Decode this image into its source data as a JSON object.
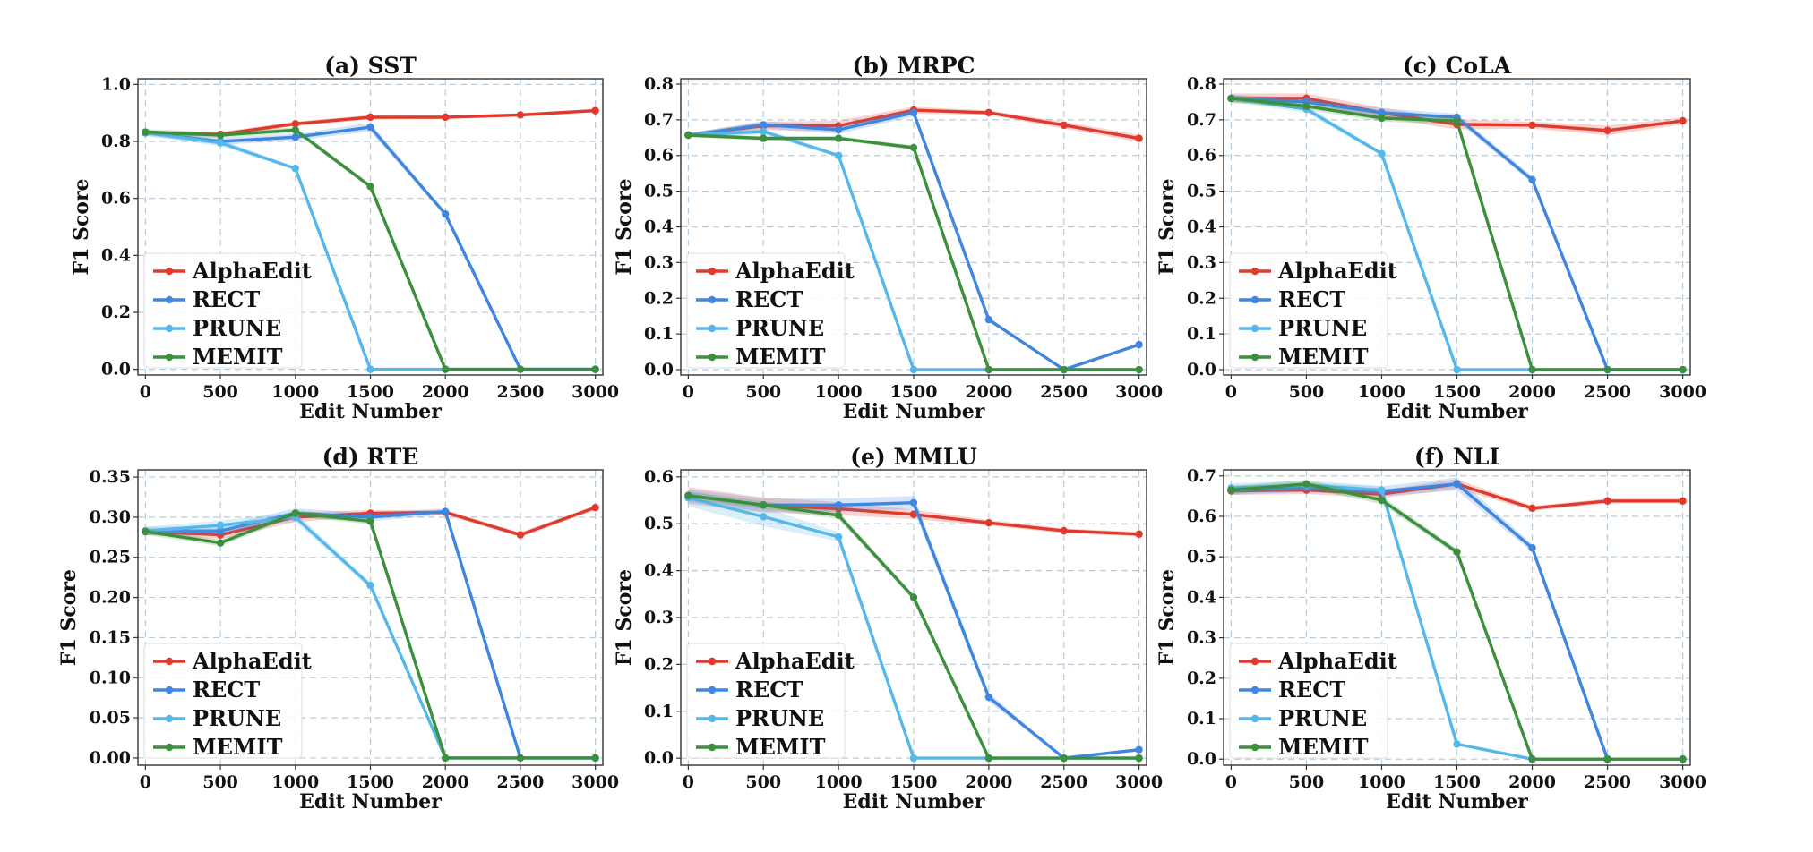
{
  "chart_data": [
    {
      "type": "line",
      "title": "(a) SST",
      "xlabel": "Edit Number",
      "ylabel": "F1 Score",
      "x": [
        0,
        500,
        1000,
        1500,
        2000,
        2500,
        3000
      ],
      "ylim": [
        -0.02,
        1.02
      ],
      "yticks": [
        0.0,
        0.2,
        0.4,
        0.6,
        0.8,
        1.0
      ],
      "ytick_labels": [
        "0.0",
        "0.2",
        "0.4",
        "0.6",
        "0.8",
        "1.0"
      ],
      "legend_position": "lower-left",
      "grid": true,
      "series": [
        {
          "name": "AlphaEdit",
          "color": "#e03a2e",
          "values": [
            0.83,
            0.825,
            0.862,
            0.885,
            0.885,
            0.893,
            0.908
          ],
          "band": [
            0.008,
            0.008,
            0.008,
            0.008,
            0.006,
            0.006,
            0.006
          ]
        },
        {
          "name": "RECT",
          "color": "#3f86e0",
          "values": [
            0.83,
            0.8,
            0.815,
            0.85,
            0.545,
            0.0,
            0.0
          ],
          "band": [
            0.01,
            0.012,
            0.012,
            0.015,
            0.008,
            0.0,
            0.0
          ]
        },
        {
          "name": "PRUNE",
          "color": "#55b7ea",
          "values": [
            0.83,
            0.795,
            0.705,
            0.0,
            0.0,
            0.0,
            0.0
          ],
          "band": [
            0.01,
            0.012,
            0.005,
            0.0,
            0.0,
            0.0,
            0.0
          ]
        },
        {
          "name": "MEMIT",
          "color": "#3c8f3c",
          "values": [
            0.833,
            0.822,
            0.84,
            0.642,
            0.0,
            0.0,
            0.0
          ],
          "band": [
            0.01,
            0.01,
            0.01,
            0.008,
            0.0,
            0.0,
            0.0
          ]
        }
      ]
    },
    {
      "type": "line",
      "title": "(b) MRPC",
      "xlabel": "Edit Number",
      "ylabel": "F1 Score",
      "x": [
        0,
        500,
        1000,
        1500,
        2000,
        2500,
        3000
      ],
      "ylim": [
        -0.015,
        0.815
      ],
      "yticks": [
        0.0,
        0.1,
        0.2,
        0.3,
        0.4,
        0.5,
        0.6,
        0.7,
        0.8
      ],
      "ytick_labels": [
        "0.0",
        "0.1",
        "0.2",
        "0.3",
        "0.4",
        "0.5",
        "0.6",
        "0.7",
        "0.8"
      ],
      "legend_position": "lower-left",
      "grid": true,
      "series": [
        {
          "name": "AlphaEdit",
          "color": "#e03a2e",
          "values": [
            0.657,
            0.683,
            0.683,
            0.727,
            0.72,
            0.685,
            0.648
          ],
          "band": [
            0.006,
            0.012,
            0.015,
            0.01,
            0.006,
            0.01,
            0.01
          ]
        },
        {
          "name": "RECT",
          "color": "#3f86e0",
          "values": [
            0.657,
            0.686,
            0.672,
            0.72,
            0.14,
            0.0,
            0.07
          ],
          "band": [
            0.006,
            0.01,
            0.012,
            0.01,
            0.006,
            0.0,
            0.003
          ]
        },
        {
          "name": "PRUNE",
          "color": "#55b7ea",
          "values": [
            0.657,
            0.667,
            0.6,
            0.0,
            0.0,
            0.0,
            0.0
          ],
          "band": [
            0.006,
            0.008,
            0.005,
            0.0,
            0.0,
            0.0,
            0.0
          ]
        },
        {
          "name": "MEMIT",
          "color": "#3c8f3c",
          "values": [
            0.657,
            0.648,
            0.648,
            0.622,
            0.0,
            0.0,
            0.0
          ],
          "band": [
            0.006,
            0.006,
            0.006,
            0.006,
            0.0,
            0.0,
            0.0
          ]
        }
      ]
    },
    {
      "type": "line",
      "title": "(c) CoLA",
      "xlabel": "Edit Number",
      "ylabel": "F1 Score",
      "x": [
        0,
        500,
        1000,
        1500,
        2000,
        2500,
        3000
      ],
      "ylim": [
        -0.015,
        0.815
      ],
      "yticks": [
        0.0,
        0.1,
        0.2,
        0.3,
        0.4,
        0.5,
        0.6,
        0.7,
        0.8
      ],
      "ytick_labels": [
        "0.0",
        "0.1",
        "0.2",
        "0.3",
        "0.4",
        "0.5",
        "0.6",
        "0.7",
        "0.8"
      ],
      "legend_position": "lower-left",
      "grid": true,
      "series": [
        {
          "name": "AlphaEdit",
          "color": "#e03a2e",
          "values": [
            0.76,
            0.76,
            0.72,
            0.687,
            0.685,
            0.67,
            0.697
          ],
          "band": [
            0.014,
            0.014,
            0.014,
            0.014,
            0.01,
            0.014,
            0.01
          ]
        },
        {
          "name": "RECT",
          "color": "#3f86e0",
          "values": [
            0.76,
            0.75,
            0.72,
            0.707,
            0.532,
            0.0,
            0.0
          ],
          "band": [
            0.01,
            0.012,
            0.012,
            0.01,
            0.01,
            0.0,
            0.0
          ]
        },
        {
          "name": "PRUNE",
          "color": "#55b7ea",
          "values": [
            0.76,
            0.73,
            0.605,
            0.0,
            0.0,
            0.0,
            0.0
          ],
          "band": [
            0.01,
            0.01,
            0.006,
            0.0,
            0.0,
            0.0,
            0.0
          ]
        },
        {
          "name": "MEMIT",
          "color": "#3c8f3c",
          "values": [
            0.76,
            0.738,
            0.705,
            0.697,
            0.0,
            0.0,
            0.0
          ],
          "band": [
            0.01,
            0.01,
            0.01,
            0.01,
            0.0,
            0.0,
            0.0
          ]
        }
      ]
    },
    {
      "type": "line",
      "title": "(d) RTE",
      "xlabel": "Edit Number",
      "ylabel": "F1 Score",
      "x": [
        0,
        500,
        1000,
        1500,
        2000,
        2500,
        3000
      ],
      "ylim": [
        -0.009,
        0.359
      ],
      "yticks": [
        0.0,
        0.05,
        0.1,
        0.15,
        0.2,
        0.25,
        0.3,
        0.35
      ],
      "ytick_labels": [
        "0.00",
        "0.05",
        "0.10",
        "0.15",
        "0.20",
        "0.25",
        "0.30",
        "0.35"
      ],
      "legend_position": "lower-left",
      "grid": true,
      "series": [
        {
          "name": "AlphaEdit",
          "color": "#e03a2e",
          "values": [
            0.282,
            0.278,
            0.3,
            0.305,
            0.306,
            0.278,
            0.312
          ],
          "band": [
            0.004,
            0.005,
            0.006,
            0.004,
            0.003,
            0.003,
            0.003
          ]
        },
        {
          "name": "RECT",
          "color": "#3f86e0",
          "values": [
            0.283,
            0.283,
            0.305,
            0.3,
            0.307,
            0.0,
            0.0
          ],
          "band": [
            0.005,
            0.006,
            0.006,
            0.005,
            0.004,
            0.0,
            0.0
          ]
        },
        {
          "name": "PRUNE",
          "color": "#55b7ea",
          "values": [
            0.283,
            0.29,
            0.3,
            0.215,
            0.0,
            0.0,
            0.0
          ],
          "band": [
            0.005,
            0.006,
            0.006,
            0.004,
            0.0,
            0.0,
            0.0
          ]
        },
        {
          "name": "MEMIT",
          "color": "#3c8f3c",
          "values": [
            0.282,
            0.268,
            0.305,
            0.295,
            0.0,
            0.0,
            0.0
          ],
          "band": [
            0.004,
            0.004,
            0.004,
            0.004,
            0.0,
            0.0,
            0.0
          ]
        }
      ]
    },
    {
      "type": "line",
      "title": "(e) MMLU",
      "xlabel": "Edit Number",
      "ylabel": "F1 Score",
      "x": [
        0,
        500,
        1000,
        1500,
        2000,
        2500,
        3000
      ],
      "ylim": [
        -0.015,
        0.615
      ],
      "yticks": [
        0.0,
        0.1,
        0.2,
        0.3,
        0.4,
        0.5,
        0.6
      ],
      "ytick_labels": [
        "0.0",
        "0.1",
        "0.2",
        "0.3",
        "0.4",
        "0.5",
        "0.6"
      ],
      "legend_position": "lower-left",
      "grid": true,
      "series": [
        {
          "name": "AlphaEdit",
          "color": "#e03a2e",
          "values": [
            0.56,
            0.54,
            0.532,
            0.52,
            0.502,
            0.485,
            0.478
          ],
          "band": [
            0.018,
            0.016,
            0.014,
            0.01,
            0.006,
            0.005,
            0.005
          ]
        },
        {
          "name": "RECT",
          "color": "#3f86e0",
          "values": [
            0.56,
            0.54,
            0.54,
            0.545,
            0.13,
            0.0,
            0.018
          ],
          "band": [
            0.014,
            0.014,
            0.014,
            0.014,
            0.01,
            0.0,
            0.003
          ]
        },
        {
          "name": "PRUNE",
          "color": "#55b7ea",
          "values": [
            0.555,
            0.515,
            0.472,
            0.0,
            0.0,
            0.0,
            0.0
          ],
          "band": [
            0.018,
            0.02,
            0.01,
            0.0,
            0.0,
            0.0,
            0.0
          ]
        },
        {
          "name": "MEMIT",
          "color": "#3c8f3c",
          "values": [
            0.56,
            0.54,
            0.518,
            0.343,
            0.0,
            0.0,
            0.0
          ],
          "band": [
            0.008,
            0.008,
            0.008,
            0.006,
            0.0,
            0.0,
            0.0
          ]
        }
      ]
    },
    {
      "type": "line",
      "title": "(f) NLI",
      "xlabel": "Edit Number",
      "ylabel": "F1 Score",
      "x": [
        0,
        500,
        1000,
        1500,
        2000,
        2500,
        3000
      ],
      "ylim": [
        -0.015,
        0.715
      ],
      "yticks": [
        0.0,
        0.1,
        0.2,
        0.3,
        0.4,
        0.5,
        0.6,
        0.7
      ],
      "ytick_labels": [
        "0.0",
        "0.1",
        "0.2",
        "0.3",
        "0.4",
        "0.5",
        "0.6",
        "0.7"
      ],
      "legend_position": "lower-left",
      "grid": true,
      "series": [
        {
          "name": "AlphaEdit",
          "color": "#e03a2e",
          "values": [
            0.663,
            0.665,
            0.655,
            0.68,
            0.62,
            0.638,
            0.638
          ],
          "band": [
            0.01,
            0.01,
            0.01,
            0.012,
            0.006,
            0.006,
            0.006
          ]
        },
        {
          "name": "RECT",
          "color": "#3f86e0",
          "values": [
            0.665,
            0.672,
            0.662,
            0.68,
            0.522,
            0.0,
            0.0
          ],
          "band": [
            0.012,
            0.012,
            0.012,
            0.016,
            0.01,
            0.0,
            0.0
          ]
        },
        {
          "name": "PRUNE",
          "color": "#55b7ea",
          "values": [
            0.67,
            0.677,
            0.665,
            0.037,
            0.0,
            0.0,
            0.0
          ],
          "band": [
            0.012,
            0.012,
            0.01,
            0.004,
            0.0,
            0.0,
            0.0
          ]
        },
        {
          "name": "MEMIT",
          "color": "#3c8f3c",
          "values": [
            0.665,
            0.68,
            0.64,
            0.512,
            0.0,
            0.0,
            0.0
          ],
          "band": [
            0.01,
            0.01,
            0.01,
            0.008,
            0.0,
            0.0,
            0.0
          ]
        }
      ]
    }
  ]
}
